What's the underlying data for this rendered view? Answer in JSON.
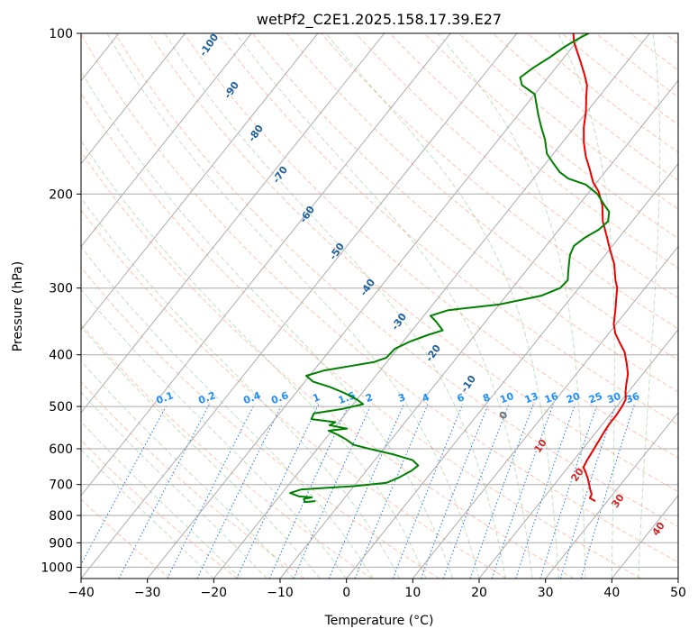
{
  "chart_data": {
    "type": "line",
    "title": "wetPf2_C2E1.2025.158.17.39.E27",
    "xlabel": "Temperature (°C)",
    "ylabel": "Pressure (hPa)",
    "xlim": [
      -40,
      50
    ],
    "ylim": [
      1050,
      100
    ],
    "y_scale": "log",
    "x_ticks": [
      -40,
      -30,
      -20,
      -10,
      0,
      10,
      20,
      30,
      40,
      50
    ],
    "y_ticks": [
      100,
      200,
      300,
      400,
      500,
      600,
      700,
      800,
      900,
      1000
    ],
    "grid": true,
    "skew": "skew-T",
    "series": [
      {
        "role": "temperature",
        "color": "#ee0000",
        "points": [
          [
            28.2,
            752
          ],
          [
            27.0,
            742
          ],
          [
            26.8,
            730
          ],
          [
            26.0,
            715
          ],
          [
            25.0,
            695
          ],
          [
            24.2,
            680
          ],
          [
            23.0,
            660
          ],
          [
            22.3,
            650
          ],
          [
            22.0,
            630
          ],
          [
            21.8,
            610
          ],
          [
            21.5,
            585
          ],
          [
            21.2,
            560
          ],
          [
            21.0,
            540
          ],
          [
            21.0,
            520
          ],
          [
            20.8,
            500
          ],
          [
            20.5,
            485
          ],
          [
            19.6,
            470
          ],
          [
            18.8,
            455
          ],
          [
            17.8,
            435
          ],
          [
            16.3,
            415
          ],
          [
            14.6,
            395
          ],
          [
            12.8,
            380
          ],
          [
            11.0,
            365
          ],
          [
            9.6,
            350
          ],
          [
            8.2,
            330
          ],
          [
            7.0,
            315
          ],
          [
            5.8,
            300
          ],
          [
            4.6,
            290
          ],
          [
            2.4,
            270
          ],
          [
            0.2,
            255
          ],
          [
            -2.0,
            240
          ],
          [
            -4.4,
            225
          ],
          [
            -6.4,
            210
          ],
          [
            -8.6,
            198
          ],
          [
            -10.6,
            190
          ],
          [
            -12.6,
            180
          ],
          [
            -14.8,
            170
          ],
          [
            -16.8,
            160
          ],
          [
            -18.6,
            150
          ],
          [
            -20.2,
            140
          ],
          [
            -21.8,
            132
          ],
          [
            -23.2,
            125
          ],
          [
            -25.0,
            119
          ],
          [
            -27.0,
            113
          ],
          [
            -28.8,
            108
          ],
          [
            -30.3,
            104
          ],
          [
            -31.2,
            101
          ],
          [
            -31.5,
            100
          ]
        ]
      },
      {
        "role": "dewpoint",
        "color": "#008000",
        "points": [
          [
            -14.0,
            752
          ],
          [
            -15.5,
            755
          ],
          [
            -16.0,
            745
          ],
          [
            -15.0,
            740
          ],
          [
            -17.0,
            737
          ],
          [
            -18.8,
            726
          ],
          [
            -17.5,
            715
          ],
          [
            -10.0,
            705
          ],
          [
            -5.5,
            695
          ],
          [
            -4.3,
            680
          ],
          [
            -3.2,
            660
          ],
          [
            -2.8,
            645
          ],
          [
            -4.3,
            630
          ],
          [
            -7.8,
            615
          ],
          [
            -12.2,
            600
          ],
          [
            -15.0,
            590
          ],
          [
            -17.0,
            575
          ],
          [
            -18.6,
            565
          ],
          [
            -20.5,
            555
          ],
          [
            -18.0,
            550
          ],
          [
            -21.0,
            542
          ],
          [
            -20.5,
            535
          ],
          [
            -24.5,
            528
          ],
          [
            -24.8,
            515
          ],
          [
            -21.0,
            505
          ],
          [
            -18.5,
            495
          ],
          [
            -20.0,
            485
          ],
          [
            -22.6,
            472
          ],
          [
            -25.5,
            460
          ],
          [
            -28.8,
            449
          ],
          [
            -30.5,
            438
          ],
          [
            -28.4,
            428
          ],
          [
            -25.0,
            420
          ],
          [
            -22.0,
            413
          ],
          [
            -20.6,
            405
          ],
          [
            -20.4,
            390
          ],
          [
            -19.0,
            378
          ],
          [
            -17.0,
            367
          ],
          [
            -15.4,
            360
          ],
          [
            -17.4,
            347
          ],
          [
            -19.0,
            338
          ],
          [
            -17.0,
            330
          ],
          [
            -10.0,
            322
          ],
          [
            -4.7,
            310
          ],
          [
            -2.8,
            300
          ],
          [
            -2.6,
            290
          ],
          [
            -3.5,
            280
          ],
          [
            -4.4,
            270
          ],
          [
            -5.3,
            260
          ],
          [
            -5.8,
            250
          ],
          [
            -5.2,
            242
          ],
          [
            -4.0,
            233
          ],
          [
            -3.6,
            225
          ],
          [
            -4.6,
            216
          ],
          [
            -6.3,
            209
          ],
          [
            -8.5,
            200
          ],
          [
            -11.4,
            192
          ],
          [
            -14.8,
            187
          ],
          [
            -16.8,
            182
          ],
          [
            -18.9,
            175
          ],
          [
            -21.0,
            168
          ],
          [
            -23.0,
            158
          ],
          [
            -25.0,
            150
          ],
          [
            -27.0,
            142
          ],
          [
            -30.0,
            130
          ],
          [
            -33.0,
            125
          ],
          [
            -34.2,
            121
          ],
          [
            -33.4,
            116
          ],
          [
            -32.2,
            111
          ],
          [
            -31.2,
            106
          ],
          [
            -30.0,
            102
          ],
          [
            -29.2,
            100
          ]
        ]
      }
    ],
    "dry_adiabat_labels": [
      "-100",
      "-90",
      "-80",
      "-70",
      "-60",
      "-50",
      "-40",
      "-30",
      "-20",
      "-10",
      "0",
      "10",
      "20",
      "30",
      "40"
    ],
    "mixing_ratio_labels": [
      "0.1",
      "0.2",
      "0.4",
      "0.6",
      "1",
      "1.5",
      "2",
      "3",
      "4",
      "6",
      "8",
      "10",
      "13",
      "16",
      "20",
      "25",
      "30",
      "36"
    ]
  }
}
